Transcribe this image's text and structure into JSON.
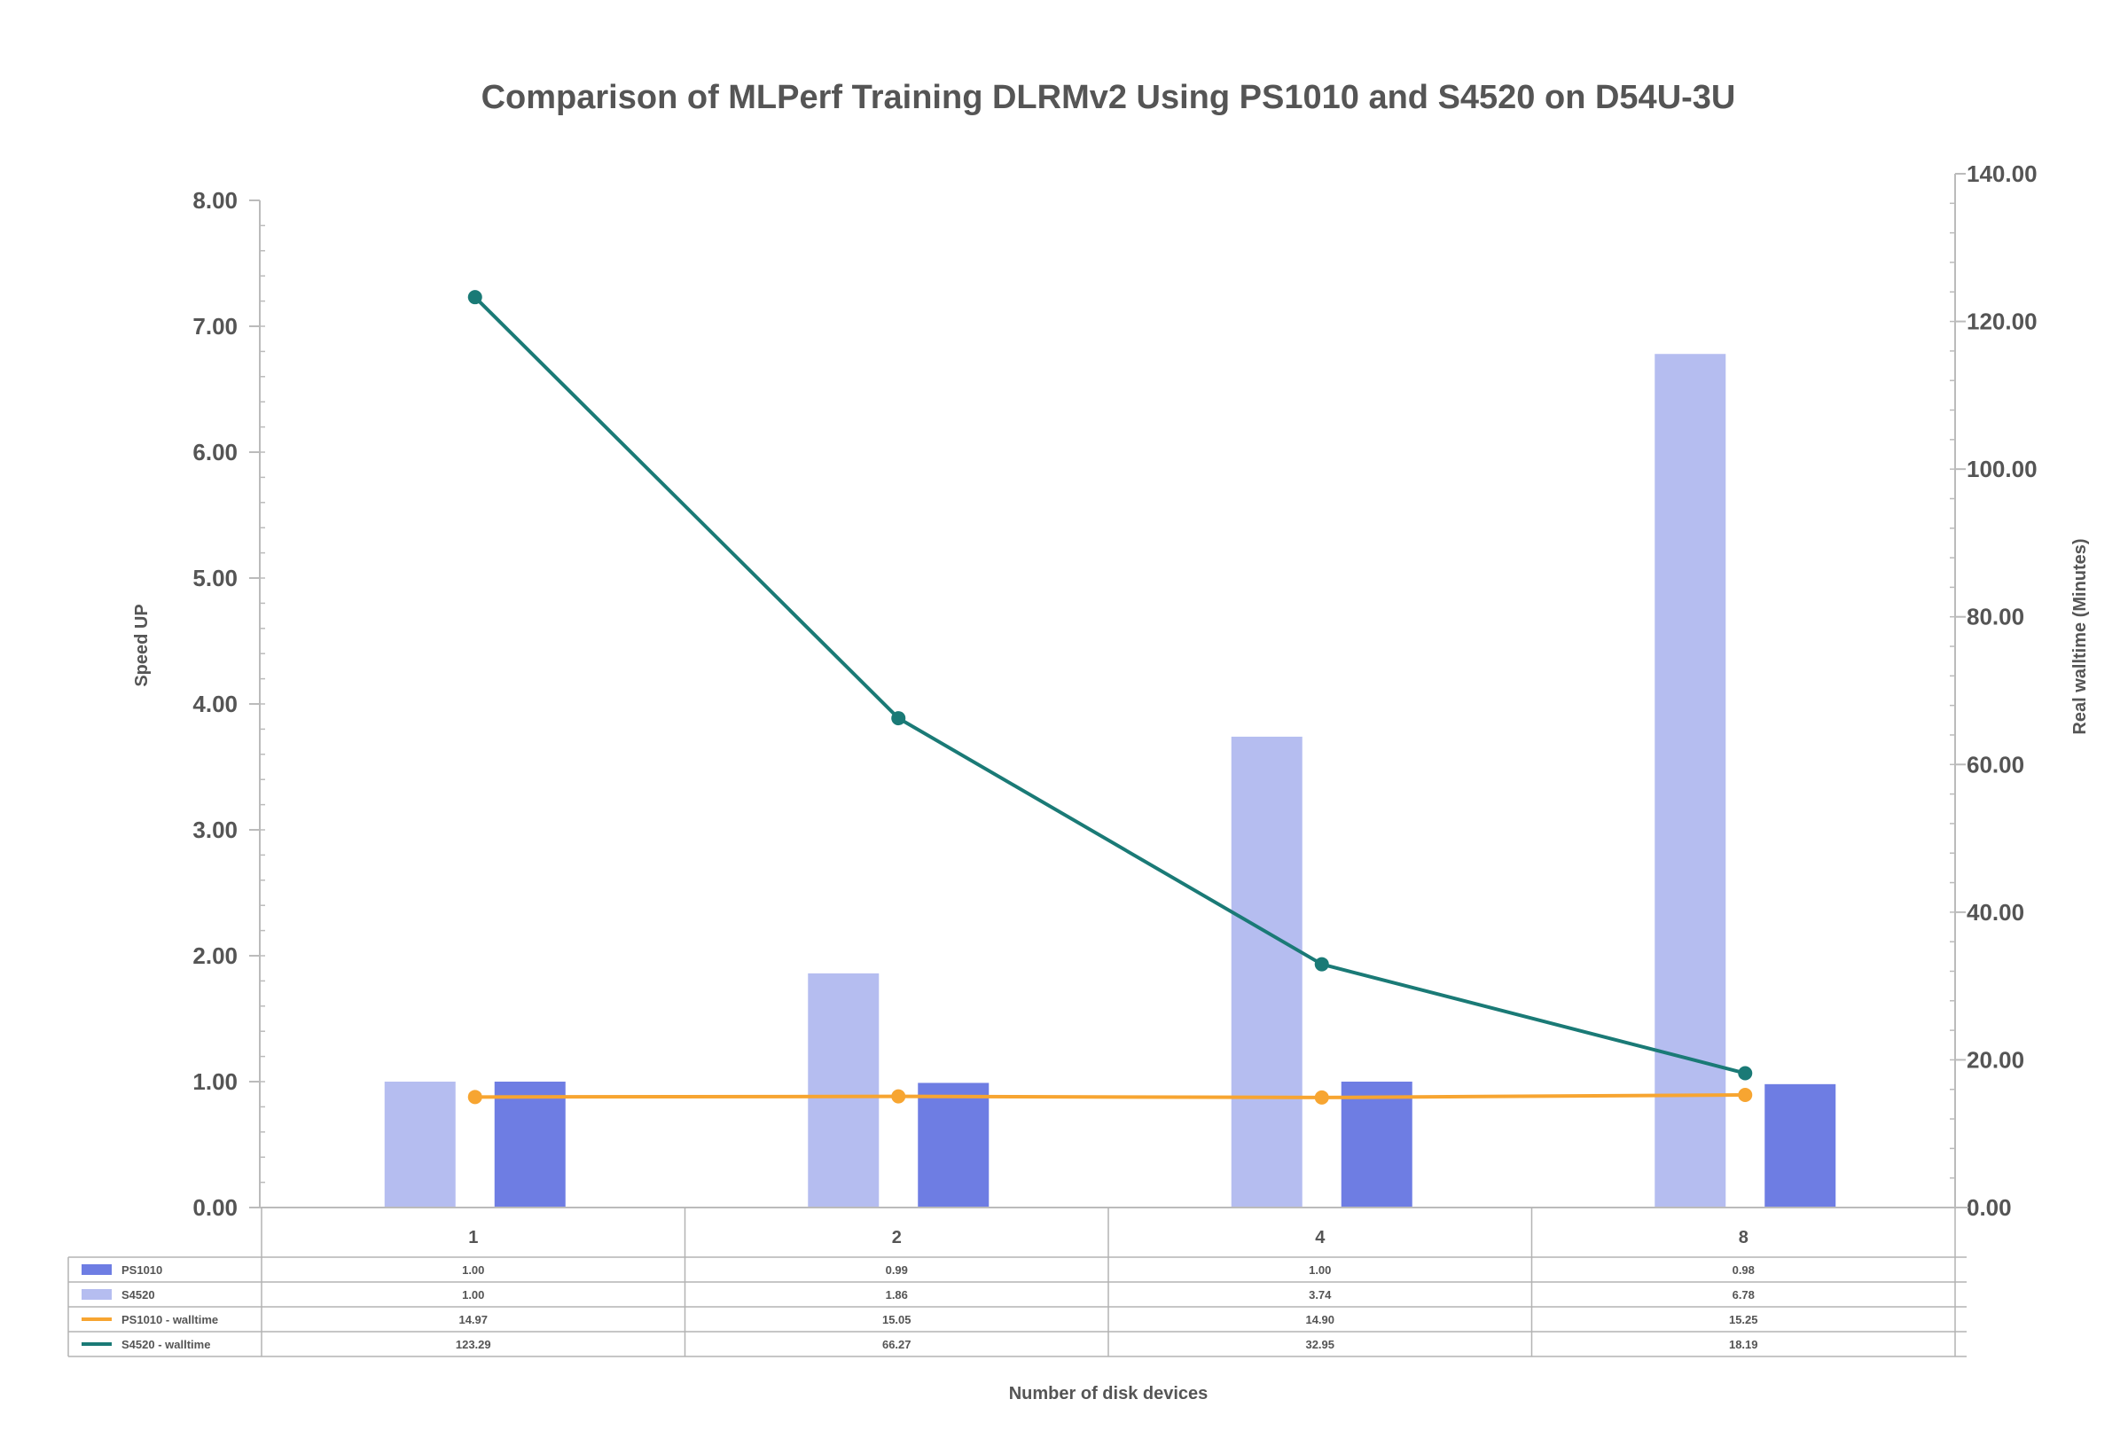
{
  "chart_data": {
    "type": "bar",
    "title": "Comparison of MLPerf Training DLRMv2 Using PS1010 and S4520 on D54U-3U",
    "xlabel": "Number of disk devices",
    "ylabel": "Speed UP",
    "y2label": "Real walltime (Minutes)",
    "categories": [
      "1",
      "2",
      "4",
      "8"
    ],
    "ylim": [
      0,
      8
    ],
    "y2lim": [
      0,
      140
    ],
    "yticks": [
      "0.00",
      "1.00",
      "2.00",
      "3.00",
      "4.00",
      "5.00",
      "6.00",
      "7.00",
      "8.00"
    ],
    "y2ticks": [
      "0.00",
      "20.00",
      "40.00",
      "60.00",
      "80.00",
      "100.00",
      "120.00",
      "140.00"
    ],
    "grid": false,
    "legend": "data-table",
    "series": [
      {
        "name": "PS1010",
        "type": "bar",
        "axis": "left",
        "color": "#6e7de3",
        "values": [
          1.0,
          0.99,
          1.0,
          0.98
        ],
        "labels": [
          "1.00",
          "0.99",
          "1.00",
          "0.98"
        ]
      },
      {
        "name": "S4520",
        "type": "bar",
        "axis": "left",
        "color": "#b5bdf0",
        "values": [
          1.0,
          1.86,
          3.74,
          6.78
        ],
        "labels": [
          "1.00",
          "1.86",
          "3.74",
          "6.78"
        ]
      },
      {
        "name": "PS1010 - walltime",
        "type": "line",
        "axis": "right",
        "color": "#f7a531",
        "values": [
          14.97,
          15.05,
          14.9,
          15.25
        ],
        "labels": [
          "14.97",
          "15.05",
          "14.90",
          "15.25"
        ]
      },
      {
        "name": "S4520 - walltime",
        "type": "line",
        "axis": "right",
        "color": "#1a7a76",
        "values": [
          123.29,
          66.27,
          32.95,
          18.19
        ],
        "labels": [
          "123.29",
          "66.27",
          "32.95",
          "18.19"
        ]
      }
    ]
  }
}
